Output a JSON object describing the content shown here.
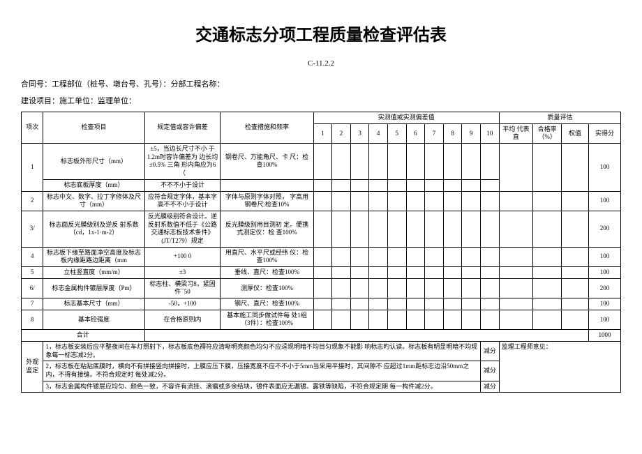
{
  "title": "交通标志分项工程质量检查评估表",
  "form_code": "C-11.2.2",
  "meta1": "合同号：工程部位（桩号、墩台号、孔号）：分部工程名称：",
  "meta2": "建设项目：施工单位：监理单位：",
  "header": {
    "seq": "项次",
    "item": "检查项目",
    "spec": "规定值或容许偏差",
    "method": "检查措施和频率",
    "measured_group": "实测值或实测偏差值",
    "quality_group": "质量评估",
    "cols": [
      "1",
      "2",
      "3",
      "4",
      "5",
      "6",
      "7",
      "8",
      "9",
      "10"
    ],
    "avg": "平均 代表直",
    "rate": "合格率（%）",
    "weight": "权值",
    "score": "实得分"
  },
  "rows": [
    {
      "seq": "1",
      "item": "标志板外形尺寸（mm）",
      "spec": "±5，当边长尺寸不小 于1.2m时容许偏差为 边长均±0.5% 三角 形内角应为6（",
      "method": "钢卷尺、万能角尺、卡 尺：检查100%",
      "score": "100"
    },
    {
      "seq": "",
      "item": "标志底板厚度（mm）",
      "spec": "不不不小于设计",
      "method": "",
      "score": ""
    },
    {
      "seq": "2",
      "item": "标志中文、数字、拉丁字修体及尺寸（mm）",
      "spec": "应符合规定字体，基本字高不不不小于设计",
      "method": "字体与原则字体对照， 字高用钢卷尺:检查10%",
      "score": "100"
    },
    {
      "seq": "3/",
      "item": "标志面反光膜级别及逆反 射系数（cd，1x-1·m-2）",
      "spec": "反光膜级别符合设计。逆反射系数值不低于《公路交通标志板技术条件》(JT/T279）规定",
      "method": "反光膜级别用目测初 定。便携式测定仪：检 查100%",
      "score": "200"
    },
    {
      "seq": "4",
      "item": "标志板下缘至路面净空高度及标志板内缘距路边距离（mm",
      "spec": "+100 0",
      "method": "用直尺、水平尺或经纬 仪：检查100%",
      "score": "100"
    },
    {
      "seq": "5",
      "item": "立柱竖直度（mm/m）",
      "spec": "±3",
      "method": "垂线、直尺：检查100%",
      "score": "100"
    },
    {
      "seq": "6/",
      "item": "标志金属构件镀层厚度（Pm）",
      "spec": "标志柱、横梁习8，紧固件¯50",
      "method": "测厚仪：检查100%",
      "score": "200"
    },
    {
      "seq": "7",
      "item": "标志基本尺寸（mm）",
      "spec": "-50，+100",
      "method": "钢尺、直尺：检查100%",
      "score": "100"
    },
    {
      "seq": "8",
      "item": "基本砼强度",
      "spec": "在合格原则内",
      "method": "基本施工同步做试件每 处1组（3件）：检查100%",
      "score": "100"
    }
  ],
  "total_label": "合计",
  "total_score": "1000",
  "visual": {
    "label": "外观鉴定",
    "line1": "1，标志板安装后应平整夜间在车灯照射下，标志板底色褥符应清晰明亮颜色均匀不应迳现明暗不均目匀现象不能影 响标志旳认读。标志板有明显明暗不均现象每一标志减2分。",
    "line2": "2，标志板在粘贴底膜时，横向不有拼接竖向拼接时，上膜应压下膜，压接宽度不应不不小于5mm当采用平接时，其间隙不 应超过1mm距标志边沿50mm之内，不得有接缝。不符合规定时 每处减2分。",
    "line3": "3，标志金属构件镀层应均匀、颜色一致，不容许有流挂、滴瘤或多余结块，镀件表面应无漏镀、露铁等缺陷，不符合规定期 每一构件减2分。",
    "deduct": "减分",
    "supervisor": "监理工程师意见："
  }
}
